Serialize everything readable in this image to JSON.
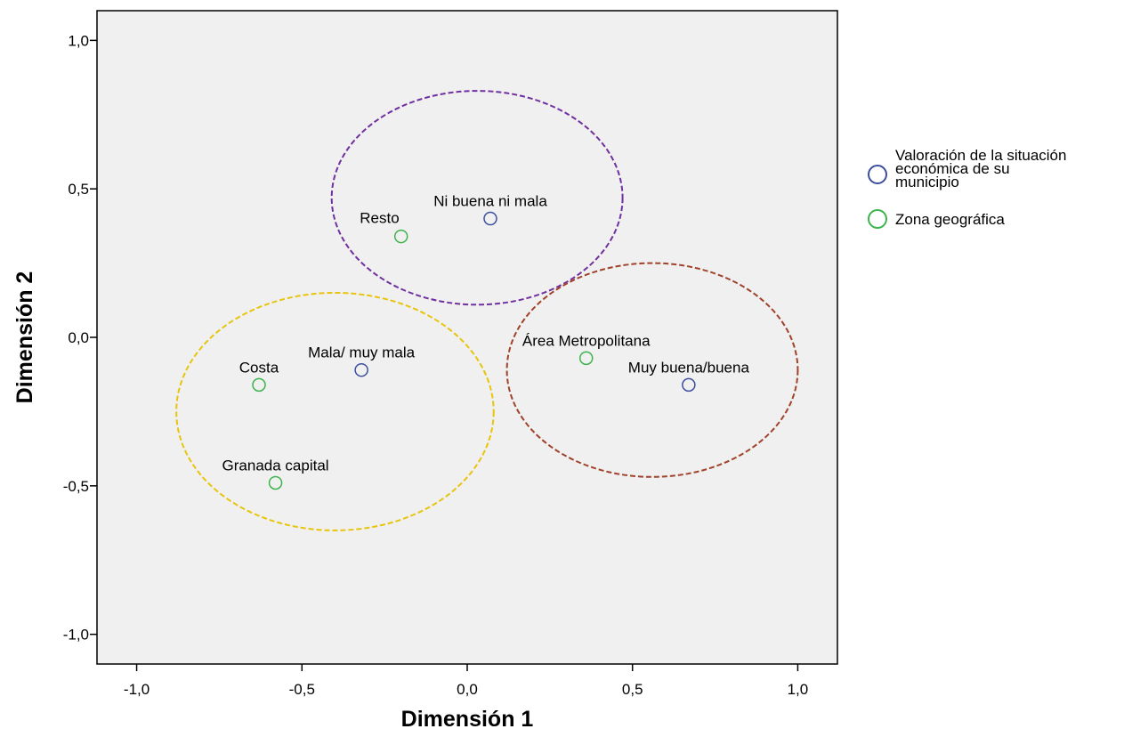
{
  "chart_data": {
    "type": "scatter",
    "xlabel": "Dimensión 1",
    "ylabel": "Dimensión 2",
    "xlim": [
      -1.12,
      1.12
    ],
    "ylim": [
      -1.1,
      1.1
    ],
    "xticks": [
      -1.0,
      -0.5,
      0.0,
      0.5,
      1.0
    ],
    "xtick_labels": [
      "-1,0",
      "-0,5",
      "0,0",
      "0,5",
      "1,0"
    ],
    "yticks": [
      -1.0,
      -0.5,
      0.0,
      0.5,
      1.0
    ],
    "ytick_labels": [
      "-1,0",
      "-0,5",
      "0,0",
      "0,5",
      "1,0"
    ],
    "grid": false,
    "plot_background": "#f0f0f0",
    "legend_position": "right",
    "series": [
      {
        "name": "Valoración de la situación económica de su municipio",
        "legend_lines": [
          "Valoración de la situación",
          "económica de su",
          "municipio"
        ],
        "color": "#3b4f9e",
        "points": [
          {
            "label": "Ni buena ni mala",
            "x": 0.07,
            "y": 0.4,
            "label_anchor": "above"
          },
          {
            "label": "Mala/ muy mala",
            "x": -0.32,
            "y": -0.11,
            "label_anchor": "above"
          },
          {
            "label": "Muy buena/buena",
            "x": 0.67,
            "y": -0.16,
            "label_anchor": "above"
          }
        ]
      },
      {
        "name": "Zona geográfica",
        "legend_lines": [
          "Zona geográfica"
        ],
        "color": "#3cb44b",
        "points": [
          {
            "label": "Resto",
            "x": -0.2,
            "y": 0.34,
            "label_anchor": "above-left"
          },
          {
            "label": "Costa",
            "x": -0.63,
            "y": -0.16,
            "label_anchor": "above"
          },
          {
            "label": "Granada capital",
            "x": -0.58,
            "y": -0.49,
            "label_anchor": "above"
          },
          {
            "label": "Área Metropolitana",
            "x": 0.36,
            "y": -0.07,
            "label_anchor": "above"
          }
        ]
      }
    ],
    "groupings": [
      {
        "color": "#7030a0",
        "cx": 0.03,
        "cy": 0.47,
        "rx": 0.44,
        "ry": 0.36
      },
      {
        "color": "#e8c40c",
        "cx": -0.4,
        "cy": -0.25,
        "rx": 0.48,
        "ry": 0.4
      },
      {
        "color": "#a0422a",
        "cx": 0.56,
        "cy": -0.11,
        "rx": 0.44,
        "ry": 0.36
      }
    ]
  }
}
